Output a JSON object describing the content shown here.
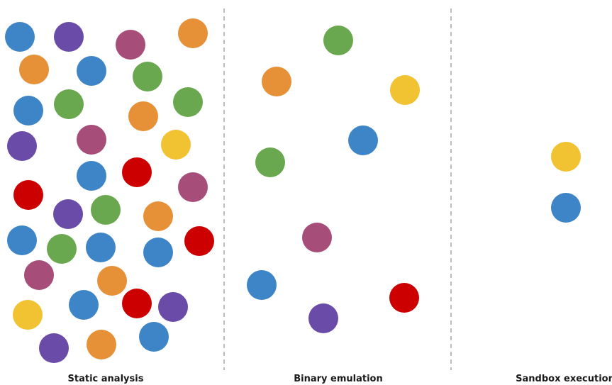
{
  "colors": {
    "blue": "#3d85c6",
    "purple": "#6a4ba8",
    "magenta": "#a64d79",
    "orange": "#e69138",
    "green": "#6aa84f",
    "yellow": "#f1c232",
    "red": "#cc0000"
  },
  "panels": [
    {
      "label": "Static analysis",
      "dots": [
        {
          "color": "blue"
        },
        {
          "color": "purple"
        },
        {
          "color": "magenta"
        },
        {
          "color": "orange"
        },
        {
          "color": "orange"
        },
        {
          "color": "blue"
        },
        {
          "color": "green"
        },
        {
          "color": "blue"
        },
        {
          "color": "green"
        },
        {
          "color": "orange"
        },
        {
          "color": "green"
        },
        {
          "color": "purple"
        },
        {
          "color": "magenta"
        },
        {
          "color": "yellow"
        },
        {
          "color": "blue"
        },
        {
          "color": "red"
        },
        {
          "color": "red"
        },
        {
          "color": "magenta"
        },
        {
          "color": "purple"
        },
        {
          "color": "green"
        },
        {
          "color": "orange"
        },
        {
          "color": "blue"
        },
        {
          "color": "green"
        },
        {
          "color": "blue"
        },
        {
          "color": "blue"
        },
        {
          "color": "red"
        },
        {
          "color": "magenta"
        },
        {
          "color": "orange"
        },
        {
          "color": "yellow"
        },
        {
          "color": "blue"
        },
        {
          "color": "red"
        },
        {
          "color": "purple"
        },
        {
          "color": "purple"
        },
        {
          "color": "orange"
        },
        {
          "color": "blue"
        }
      ]
    },
    {
      "label": "Binary emulation",
      "dots": [
        {
          "color": "green"
        },
        {
          "color": "orange"
        },
        {
          "color": "yellow"
        },
        {
          "color": "blue"
        },
        {
          "color": "green"
        },
        {
          "color": "magenta"
        },
        {
          "color": "blue"
        },
        {
          "color": "red"
        },
        {
          "color": "purple"
        }
      ]
    },
    {
      "label": "Sandbox execution",
      "dots": [
        {
          "color": "yellow"
        },
        {
          "color": "blue"
        }
      ]
    }
  ]
}
